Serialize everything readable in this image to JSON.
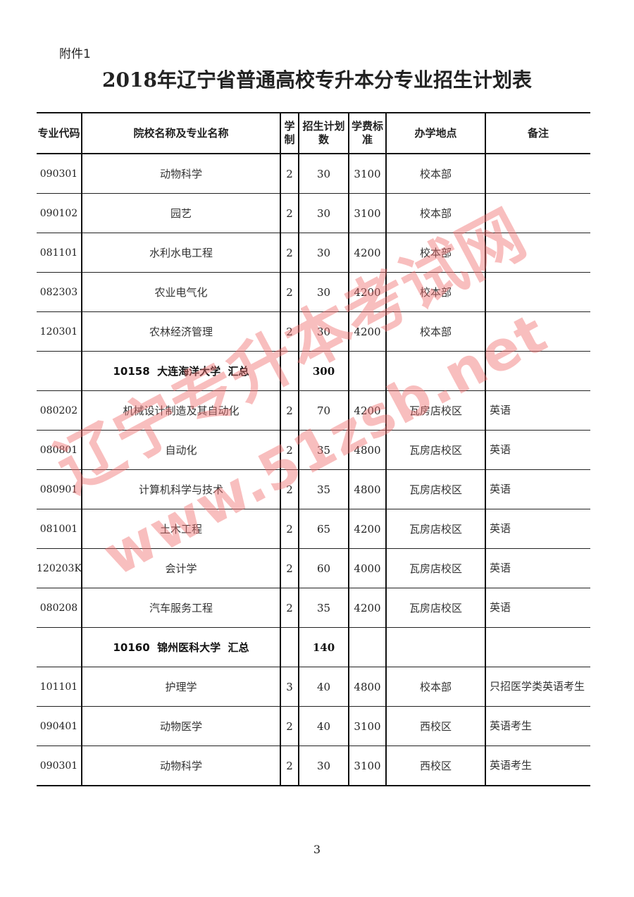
{
  "attachment_label": "附件1",
  "title": "2018年辽宁省普通高校专升本分专业招生计划表",
  "headers": [
    "专业代码",
    "院校名称及专业名称",
    "学制",
    "招生计划数",
    "学费标准",
    "办学地点",
    "备注"
  ],
  "rows": [
    [
      "090301",
      "动物科学",
      "2",
      "30",
      "3100",
      "校本部",
      ""
    ],
    [
      "090102",
      "园艺",
      "2",
      "30",
      "3100",
      "校本部",
      ""
    ],
    [
      "081101",
      "水利水电工程",
      "2",
      "30",
      "4200",
      "校本部",
      ""
    ],
    [
      "082303",
      "农业电气化",
      "2",
      "30",
      "4200",
      "校本部",
      ""
    ],
    [
      "120301",
      "农林经济管理",
      "2",
      "30",
      "4200",
      "校本部",
      ""
    ],
    [
      "",
      "10158  大连海洋大学  汇总",
      "",
      "300",
      "",
      "",
      ""
    ],
    [
      "080202",
      "机械设计制造及其自动化",
      "2",
      "70",
      "4200",
      "瓦房店校区",
      "英语"
    ],
    [
      "080801",
      "自动化",
      "2",
      "35",
      "4800",
      "瓦房店校区",
      "英语"
    ],
    [
      "080901",
      "计算机科学与技术",
      "2",
      "35",
      "4800",
      "瓦房店校区",
      "英语"
    ],
    [
      "081001",
      "土木工程",
      "2",
      "65",
      "4200",
      "瓦房店校区",
      "英语"
    ],
    [
      "120203K",
      "会计学",
      "2",
      "60",
      "4000",
      "瓦房店校区",
      "英语"
    ],
    [
      "080208",
      "汽车服务工程",
      "2",
      "35",
      "4200",
      "瓦房店校区",
      "英语"
    ],
    [
      "",
      "10160  锦州医科大学  汇总",
      "",
      "140",
      "",
      "",
      ""
    ],
    [
      "101101",
      "护理学",
      "3",
      "40",
      "4800",
      "校本部",
      "只招医学类英语考生"
    ],
    [
      "090401",
      "动物医学",
      "2",
      "40",
      "3100",
      "西校区",
      "英语考生"
    ],
    [
      "090301",
      "动物科学",
      "2",
      "30",
      "3100",
      "西校区",
      "英语考生"
    ]
  ],
  "page_number": "3",
  "watermark": [
    "辽宁专升本考试网",
    "www.51zsb.net"
  ]
}
